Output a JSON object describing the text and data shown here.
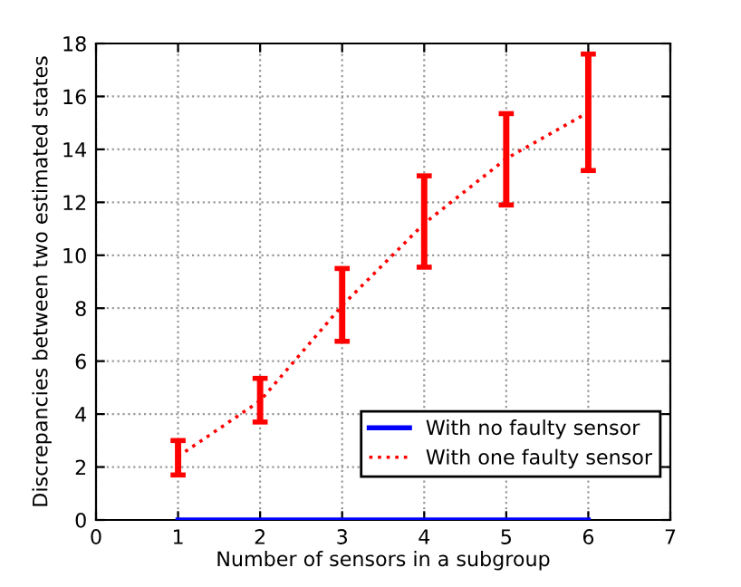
{
  "chart_data": {
    "type": "line",
    "xlabel": "Number of sensors in a subgroup",
    "ylabel": "Discrepancies between two estimated states",
    "x": [
      1,
      2,
      3,
      4,
      5,
      6
    ],
    "series": [
      {
        "name": "With no faulty sensor",
        "color": "#0000ff",
        "line_style": "solid",
        "values": [
          0,
          0,
          0,
          0,
          0,
          0
        ]
      },
      {
        "name": "With one faulty sensor",
        "color": "#ff0000",
        "line_style": "dotted",
        "values": [
          2.4,
          4.5,
          8.1,
          11.2,
          13.65,
          15.4
        ],
        "errors": [
          [
            1.7,
            3.0
          ],
          [
            3.7,
            5.35
          ],
          [
            6.75,
            9.5
          ],
          [
            9.55,
            13.0
          ],
          [
            11.9,
            15.35
          ],
          [
            13.2,
            17.6
          ]
        ]
      }
    ],
    "xlim": [
      0,
      7
    ],
    "xticks": [
      0,
      1,
      2,
      3,
      4,
      5,
      6,
      7
    ],
    "ylim": [
      0,
      18
    ],
    "yticks": [
      0,
      2,
      4,
      6,
      8,
      10,
      12,
      14,
      16,
      18
    ],
    "grid": true,
    "legend": "bottom right",
    "marker": "none"
  }
}
